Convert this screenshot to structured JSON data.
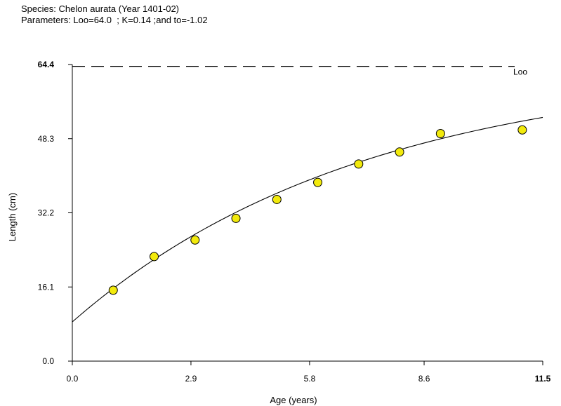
{
  "header": {
    "species_line": "Species: Chelon aurata (Year 1401-02)",
    "parameters_line": "Parameters: Loo=64.0  ; K=0.14 ;and to=-1.02"
  },
  "chart_data": {
    "type": "scatter",
    "xlabel": "Age (years)",
    "ylabel": "Length (cm)",
    "xlim": [
      0.0,
      11.5
    ],
    "ylim": [
      0.0,
      64.4
    ],
    "x_ticks": [
      "0.0",
      "2.9",
      "5.8",
      "8.6",
      "11.5"
    ],
    "y_ticks": [
      "0.0",
      "16.1",
      "32.2",
      "48.3",
      "64.4"
    ],
    "asymptote": {
      "label": "Loo",
      "value": 64.0,
      "style": "dashed"
    },
    "fit": {
      "model": "von Bertalanffy",
      "Linf": 64.0,
      "K": 0.14,
      "t0": -1.02
    },
    "series": [
      {
        "x": [
          1,
          2,
          3,
          4,
          5,
          6,
          7,
          8,
          9,
          11
        ],
        "y": [
          15.4,
          22.7,
          26.3,
          31.0,
          35.1,
          38.8,
          42.8,
          45.4,
          49.4,
          50.2
        ]
      }
    ],
    "marker_color": "#f2ea0c",
    "marker_edge": "#000000",
    "line_color": "#000000",
    "grid": false
  }
}
